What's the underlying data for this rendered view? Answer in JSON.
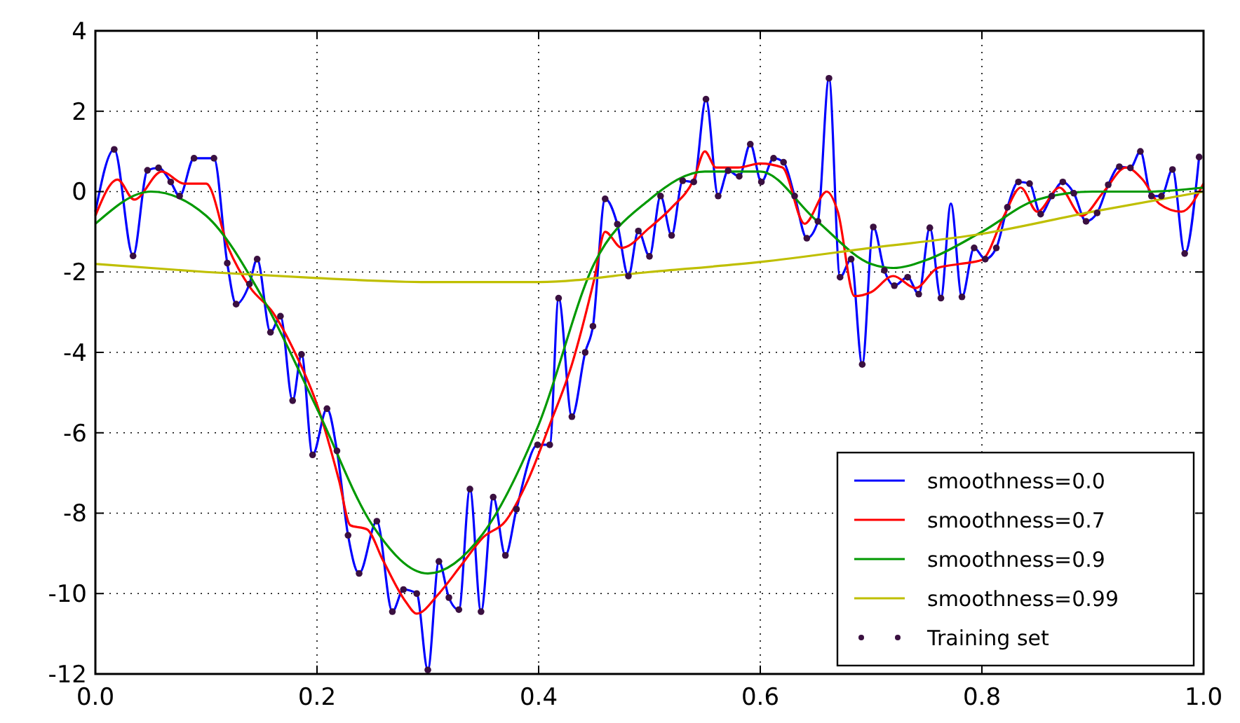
{
  "chart_data": {
    "type": "line",
    "xlim": [
      0,
      1
    ],
    "ylim": [
      -12,
      4
    ],
    "xticks": [
      {
        "value": 0,
        "label": "0.0"
      },
      {
        "value": 0.2,
        "label": "0.2"
      },
      {
        "value": 0.4,
        "label": "0.4"
      },
      {
        "value": 0.6,
        "label": "0.6"
      },
      {
        "value": 0.8,
        "label": "0.8"
      },
      {
        "value": 1,
        "label": "1.0"
      }
    ],
    "yticks": [
      -12,
      -10,
      -8,
      -6,
      -4,
      -2,
      0,
      2,
      4
    ],
    "grid": true,
    "legend": "bottom right",
    "series": [
      {
        "name": "smoothness=0.0",
        "color": "#0000ff",
        "x": [
          0.0,
          0.017,
          0.034,
          0.047,
          0.057,
          0.068,
          0.076,
          0.089,
          0.107,
          0.119,
          0.127,
          0.139,
          0.146,
          0.158,
          0.167,
          0.178,
          0.186,
          0.196,
          0.209,
          0.218,
          0.228,
          0.238,
          0.254,
          0.268,
          0.278,
          0.29,
          0.3,
          0.31,
          0.319,
          0.328,
          0.338,
          0.348,
          0.359,
          0.37,
          0.38,
          0.399,
          0.41,
          0.418,
          0.43,
          0.442,
          0.449,
          0.46,
          0.471,
          0.481,
          0.49,
          0.5,
          0.51,
          0.52,
          0.53,
          0.54,
          0.551,
          0.562,
          0.571,
          0.581,
          0.591,
          0.601,
          0.612,
          0.621,
          0.631,
          0.642,
          0.652,
          0.662,
          0.672,
          0.682,
          0.692,
          0.702,
          0.712,
          0.721,
          0.733,
          0.743,
          0.753,
          0.763,
          0.772,
          0.782,
          0.793,
          0.803,
          0.813,
          0.823,
          0.833,
          0.843,
          0.853,
          0.863,
          0.873,
          0.883,
          0.894,
          0.904,
          0.914,
          0.924,
          0.934,
          0.943,
          0.953,
          0.962,
          0.972,
          0.983,
          0.996
        ],
        "values": [
          -0.5,
          1.05,
          -1.6,
          0.53,
          0.59,
          0.24,
          -0.11,
          0.83,
          0.83,
          -1.78,
          -2.8,
          -2.3,
          -1.68,
          -3.5,
          -3.1,
          -5.2,
          -4.05,
          -6.55,
          -5.4,
          -6.45,
          -8.55,
          -9.5,
          -8.2,
          -10.45,
          -9.9,
          -10.0,
          -11.9,
          -9.2,
          -10.1,
          -10.4,
          -7.4,
          -10.45,
          -7.6,
          -9.05,
          -7.9,
          -6.3,
          -6.3,
          -2.65,
          -5.6,
          -4.0,
          -3.35,
          -0.18,
          -0.81,
          -2.1,
          -0.98,
          -1.61,
          -0.11,
          -1.09,
          0.27,
          0.24,
          2.3,
          -0.11,
          0.52,
          0.38,
          1.18,
          0.24,
          0.83,
          0.73,
          -0.11,
          -1.16,
          -0.74,
          2.82,
          -2.13,
          -1.68,
          -4.3,
          -0.88,
          -1.96,
          -2.34,
          -2.13,
          -2.55,
          -0.9,
          -2.65,
          -0.3,
          -2.62,
          -1.4,
          -1.68,
          -1.4,
          -0.39,
          0.24,
          0.2,
          -0.56,
          -0.11,
          0.24,
          -0.04,
          -0.74,
          -0.53,
          0.17,
          0.62,
          0.59,
          1.0,
          -0.11,
          -0.11,
          0.55,
          -1.54,
          0.86
        ]
      },
      {
        "name": "smoothness=0.7",
        "color": "#ff0000",
        "x": [
          0,
          0.02,
          0.035,
          0.06,
          0.08,
          0.1,
          0.12,
          0.14,
          0.16,
          0.18,
          0.2,
          0.22,
          0.23,
          0.245,
          0.26,
          0.28,
          0.29,
          0.31,
          0.33,
          0.35,
          0.37,
          0.39,
          0.41,
          0.43,
          0.45,
          0.46,
          0.475,
          0.5,
          0.52,
          0.54,
          0.55,
          0.56,
          0.58,
          0.6,
          0.62,
          0.64,
          0.66,
          0.67,
          0.685,
          0.7,
          0.72,
          0.74,
          0.76,
          0.78,
          0.8,
          0.82,
          0.835,
          0.85,
          0.87,
          0.89,
          0.91,
          0.93,
          0.945,
          0.96,
          0.98,
          1.0
        ],
        "values": [
          -0.6,
          0.3,
          -0.2,
          0.5,
          0.2,
          0.2,
          -1.4,
          -2.4,
          -3.0,
          -4.0,
          -5.3,
          -7.2,
          -8.3,
          -8.4,
          -9.2,
          -10.2,
          -10.5,
          -10.0,
          -9.3,
          -8.6,
          -8.2,
          -7.2,
          -5.8,
          -4.3,
          -2.2,
          -1.0,
          -1.4,
          -0.9,
          -0.4,
          0.3,
          1.0,
          0.6,
          0.6,
          0.7,
          0.6,
          -0.8,
          0.0,
          -0.5,
          -2.6,
          -2.5,
          -2.1,
          -2.4,
          -1.9,
          -1.8,
          -1.7,
          -0.6,
          0.1,
          -0.5,
          0.1,
          -0.6,
          0.0,
          0.6,
          0.3,
          -0.3,
          -0.5,
          0.2
        ]
      },
      {
        "name": "smoothness=0.9",
        "color": "#009900",
        "x": [
          0,
          0.05,
          0.1,
          0.15,
          0.2,
          0.25,
          0.3,
          0.35,
          0.4,
          0.45,
          0.5,
          0.55,
          0.6,
          0.65,
          0.7,
          0.72,
          0.75,
          0.8,
          0.85,
          0.9,
          0.95,
          1.0
        ],
        "values": [
          -0.8,
          0.0,
          -0.6,
          -2.6,
          -5.4,
          -8.3,
          -9.5,
          -8.5,
          -5.8,
          -1.8,
          -0.2,
          0.5,
          0.5,
          -0.7,
          -1.8,
          -1.9,
          -1.7,
          -1.0,
          -0.2,
          0.0,
          0.0,
          0.1
        ]
      },
      {
        "name": "smoothness=0.99",
        "color": "#bfbf00",
        "x": [
          0,
          0.1,
          0.2,
          0.3,
          0.4,
          0.5,
          0.6,
          0.7,
          0.8,
          0.9,
          1.0
        ],
        "values": [
          -1.8,
          -2.0,
          -2.15,
          -2.25,
          -2.25,
          -2.0,
          -1.75,
          -1.4,
          -1.05,
          -0.5,
          0.0
        ]
      },
      {
        "name": "Training set",
        "type": "scatter",
        "marker": "circle",
        "color": "#3a1040",
        "x": [
          0.017,
          0.034,
          0.047,
          0.057,
          0.068,
          0.076,
          0.089,
          0.107,
          0.119,
          0.127,
          0.139,
          0.146,
          0.158,
          0.167,
          0.178,
          0.186,
          0.196,
          0.209,
          0.218,
          0.228,
          0.238,
          0.254,
          0.268,
          0.278,
          0.29,
          0.3,
          0.31,
          0.319,
          0.328,
          0.338,
          0.348,
          0.359,
          0.37,
          0.38,
          0.399,
          0.41,
          0.418,
          0.43,
          0.442,
          0.449,
          0.46,
          0.471,
          0.481,
          0.49,
          0.5,
          0.51,
          0.52,
          0.53,
          0.54,
          0.551,
          0.562,
          0.571,
          0.581,
          0.591,
          0.601,
          0.612,
          0.621,
          0.631,
          0.642,
          0.652,
          0.662,
          0.672,
          0.682,
          0.692,
          0.702,
          0.712,
          0.721,
          0.733,
          0.743,
          0.753,
          0.763,
          0.782,
          0.793,
          0.803,
          0.813,
          0.823,
          0.833,
          0.843,
          0.853,
          0.863,
          0.873,
          0.883,
          0.894,
          0.904,
          0.914,
          0.924,
          0.934,
          0.943,
          0.953,
          0.962,
          0.972,
          0.983,
          0.996
        ],
        "values": [
          1.05,
          -1.6,
          0.53,
          0.59,
          0.24,
          -0.11,
          0.83,
          0.83,
          -1.78,
          -2.8,
          -2.3,
          -1.68,
          -3.5,
          -3.1,
          -5.2,
          -4.05,
          -6.55,
          -5.4,
          -6.45,
          -8.55,
          -9.5,
          -8.2,
          -10.45,
          -9.9,
          -10.0,
          -11.9,
          -9.2,
          -10.1,
          -10.4,
          -7.4,
          -10.45,
          -7.6,
          -9.05,
          -7.9,
          -6.3,
          -6.3,
          -2.65,
          -5.6,
          -4.0,
          -3.35,
          -0.18,
          -0.81,
          -2.1,
          -0.98,
          -1.61,
          -0.11,
          -1.09,
          0.27,
          0.24,
          2.3,
          -0.11,
          0.52,
          0.38,
          1.18,
          0.24,
          0.83,
          0.73,
          -0.11,
          -1.16,
          -0.74,
          2.82,
          -2.13,
          -1.68,
          -4.3,
          -0.88,
          -1.96,
          -2.34,
          -2.13,
          -2.55,
          -0.9,
          -2.65,
          -2.62,
          -1.4,
          -1.68,
          -1.4,
          -0.39,
          0.24,
          0.2,
          -0.56,
          -0.11,
          0.24,
          -0.04,
          -0.74,
          -0.53,
          0.17,
          0.62,
          0.59,
          1.0,
          -0.11,
          -0.11,
          0.55,
          -1.54,
          0.86
        ]
      }
    ]
  }
}
